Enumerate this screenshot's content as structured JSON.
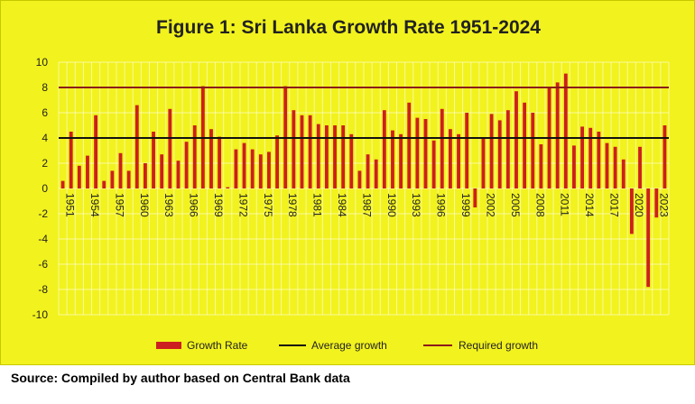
{
  "chart_data": {
    "type": "bar",
    "title": "Figure 1: Sri Lanka Growth Rate 1951-2024",
    "xlabel": "",
    "ylabel": "",
    "ylim": [
      -10,
      10
    ],
    "yticks": [
      10,
      8,
      6,
      4,
      2,
      0,
      -2,
      -4,
      -6,
      -8,
      -10
    ],
    "x": [
      1951,
      1952,
      1953,
      1954,
      1955,
      1956,
      1957,
      1958,
      1959,
      1960,
      1961,
      1962,
      1963,
      1964,
      1965,
      1966,
      1967,
      1968,
      1969,
      1970,
      1971,
      1972,
      1973,
      1974,
      1975,
      1976,
      1977,
      1978,
      1979,
      1980,
      1981,
      1982,
      1983,
      1984,
      1985,
      1986,
      1987,
      1988,
      1989,
      1990,
      1991,
      1992,
      1993,
      1994,
      1995,
      1996,
      1997,
      1998,
      1999,
      2000,
      2001,
      2002,
      2003,
      2004,
      2005,
      2006,
      2007,
      2008,
      2009,
      2010,
      2011,
      2012,
      2013,
      2014,
      2015,
      2016,
      2017,
      2018,
      2019,
      2020,
      2021,
      2022,
      2023,
      2024
    ],
    "xtick_labels": [
      "1951",
      "1954",
      "1957",
      "1960",
      "1963",
      "1966",
      "1969",
      "1972",
      "1975",
      "1978",
      "1981",
      "1984",
      "1987",
      "1990",
      "1993",
      "1996",
      "1999",
      "2002",
      "2005",
      "2008",
      "2011",
      "2014",
      "2017",
      "2020",
      "2023"
    ],
    "series": [
      {
        "name": "Growth Rate",
        "type": "bar",
        "color": "#cc1f1f",
        "values": [
          0.6,
          4.5,
          1.8,
          2.6,
          5.8,
          0.6,
          1.4,
          2.8,
          1.4,
          6.6,
          2.0,
          4.5,
          2.7,
          6.3,
          2.2,
          3.7,
          5.0,
          8.1,
          4.7,
          4.1,
          0.1,
          3.1,
          3.6,
          3.1,
          2.7,
          2.9,
          4.2,
          8.1,
          6.2,
          5.8,
          5.8,
          5.1,
          5.0,
          5.0,
          5.0,
          4.3,
          1.4,
          2.7,
          2.3,
          6.2,
          4.6,
          4.3,
          6.8,
          5.6,
          5.5,
          3.8,
          6.3,
          4.7,
          4.3,
          6.0,
          -1.5,
          4.0,
          5.9,
          5.4,
          6.2,
          7.7,
          6.8,
          6.0,
          3.5,
          8.0,
          8.4,
          9.1,
          3.4,
          4.9,
          4.8,
          4.5,
          3.6,
          3.3,
          2.3,
          -3.6,
          3.3,
          -7.8,
          -2.3,
          5.0
        ]
      },
      {
        "name": "Average growth",
        "type": "line",
        "color": "#111111",
        "value": 4.0
      },
      {
        "name": "Required growth",
        "type": "line",
        "color": "#8b1a1a",
        "value": 8.0
      }
    ],
    "legend": "bottom",
    "grid": true
  },
  "source": "Source: Compiled by author based on Central Bank data"
}
